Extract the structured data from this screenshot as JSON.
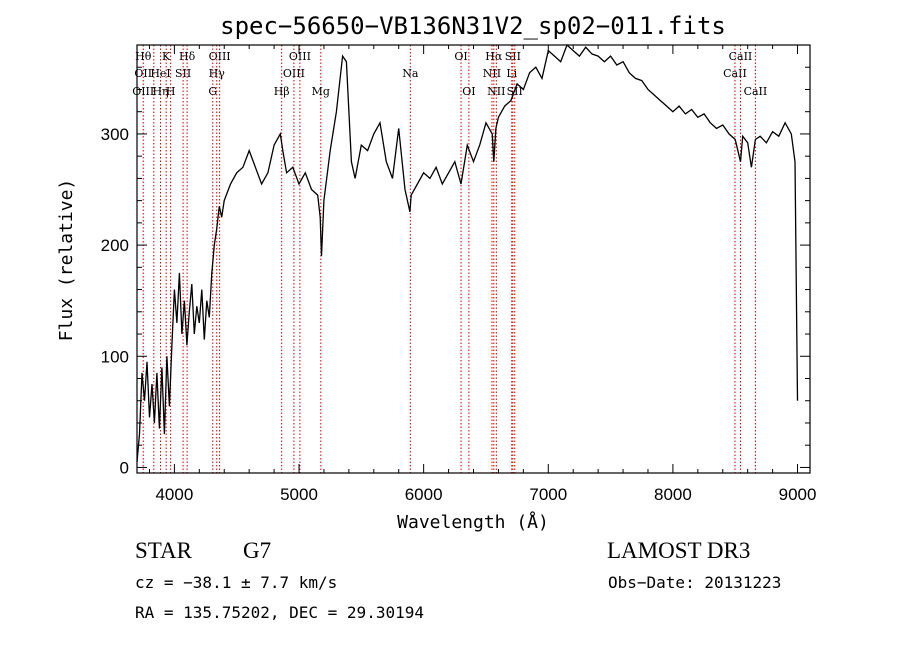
{
  "chart_data": {
    "type": "line",
    "title": "spec−56650−VB136N31V2_sp02−011.fits",
    "xlabel": "Wavelength (Å)",
    "ylabel": "Flux (relative)",
    "xlim": [
      3700,
      9100
    ],
    "ylim": [
      -5,
      380
    ],
    "xticks": [
      4000,
      5000,
      6000,
      7000,
      8000,
      9000
    ],
    "yticks": [
      0,
      100,
      200,
      300
    ],
    "series": [
      {
        "x": [
          3700,
          3720,
          3740,
          3760,
          3780,
          3800,
          3820,
          3840,
          3860,
          3880,
          3900,
          3920,
          3940,
          3960,
          3980,
          4000,
          4020,
          4040,
          4060,
          4080,
          4100,
          4120,
          4140,
          4160,
          4180,
          4200,
          4220,
          4240,
          4260,
          4280,
          4300,
          4320,
          4340,
          4360,
          4380,
          4400,
          4450,
          4500,
          4550,
          4600,
          4650,
          4700,
          4750,
          4800,
          4850,
          4870,
          4900,
          4950,
          5000,
          5050,
          5100,
          5150,
          5170,
          5180,
          5200,
          5250,
          5300,
          5350,
          5380,
          5400,
          5420,
          5450,
          5500,
          5550,
          5600,
          5650,
          5700,
          5750,
          5800,
          5850,
          5890,
          5900,
          5950,
          6000,
          6050,
          6100,
          6150,
          6200,
          6250,
          6300,
          6350,
          6400,
          6450,
          6500,
          6550,
          6563,
          6580,
          6600,
          6650,
          6700,
          6750,
          6800,
          6850,
          6900,
          6950,
          7000,
          7050,
          7100,
          7150,
          7200,
          7250,
          7300,
          7350,
          7400,
          7450,
          7500,
          7550,
          7600,
          7650,
          7700,
          7750,
          7800,
          7850,
          7900,
          7950,
          8000,
          8050,
          8100,
          8150,
          8200,
          8250,
          8300,
          8350,
          8400,
          8450,
          8500,
          8542,
          8560,
          8600,
          8630,
          8662,
          8700,
          8750,
          8800,
          8850,
          8900,
          8950,
          8980,
          9000
        ],
        "y": [
          5,
          30,
          85,
          60,
          95,
          45,
          75,
          40,
          85,
          35,
          90,
          30,
          100,
          55,
          110,
          160,
          130,
          175,
          120,
          150,
          110,
          140,
          165,
          120,
          145,
          130,
          160,
          115,
          150,
          135,
          175,
          200,
          215,
          235,
          225,
          240,
          255,
          265,
          270,
          285,
          270,
          255,
          265,
          290,
          300,
          285,
          265,
          270,
          255,
          265,
          250,
          245,
          225,
          190,
          240,
          285,
          320,
          370,
          365,
          320,
          275,
          260,
          290,
          285,
          300,
          310,
          275,
          260,
          305,
          250,
          230,
          245,
          255,
          265,
          260,
          270,
          255,
          265,
          275,
          255,
          290,
          275,
          290,
          310,
          300,
          275,
          305,
          315,
          325,
          330,
          345,
          340,
          355,
          360,
          350,
          375,
          370,
          365,
          380,
          375,
          370,
          378,
          372,
          370,
          365,
          370,
          362,
          365,
          355,
          350,
          348,
          340,
          335,
          330,
          325,
          320,
          325,
          318,
          322,
          315,
          318,
          310,
          305,
          308,
          300,
          295,
          275,
          298,
          292,
          270,
          295,
          298,
          292,
          302,
          298,
          310,
          300,
          275,
          60
        ]
      }
    ],
    "lines": [
      {
        "x": 3750,
        "top": "Hθ",
        "mid": "OII",
        "low": "OIII"
      },
      {
        "x": 3835,
        "top": "",
        "mid": "",
        "low": ""
      },
      {
        "x": 3889,
        "top": "",
        "mid": "HeI",
        "low": "Hη"
      },
      {
        "x": 3934,
        "top": "K",
        "mid": "",
        "low": ""
      },
      {
        "x": 3970,
        "top": "",
        "mid": "",
        "low": "H"
      },
      {
        "x": 4070,
        "top": "",
        "mid": "SII",
        "low": ""
      },
      {
        "x": 4102,
        "top": "Hδ",
        "mid": "",
        "low": ""
      },
      {
        "x": 4308,
        "top": "",
        "mid": "",
        "low": "G"
      },
      {
        "x": 4340,
        "top": "",
        "mid": "Hγ",
        "low": ""
      },
      {
        "x": 4363,
        "top": "OIII",
        "mid": "",
        "low": ""
      },
      {
        "x": 4861,
        "top": "",
        "mid": "",
        "low": "Hβ"
      },
      {
        "x": 4959,
        "top": "",
        "mid": "OIII",
        "low": ""
      },
      {
        "x": 5007,
        "top": "OIII",
        "mid": "",
        "low": ""
      },
      {
        "x": 5175,
        "top": "",
        "mid": "",
        "low": "Mg"
      },
      {
        "x": 5893,
        "top": "",
        "mid": "Na",
        "low": ""
      },
      {
        "x": 6300,
        "top": "OI",
        "mid": "",
        "low": ""
      },
      {
        "x": 6363,
        "top": "",
        "mid": "",
        "low": "OI"
      },
      {
        "x": 6548,
        "top": "",
        "mid": "NII",
        "low": ""
      },
      {
        "x": 6563,
        "top": "Hα",
        "mid": "",
        "low": ""
      },
      {
        "x": 6583,
        "top": "",
        "mid": "",
        "low": "NII"
      },
      {
        "x": 6707,
        "top": "",
        "mid": "Li",
        "low": ""
      },
      {
        "x": 6716,
        "top": "SII",
        "mid": "",
        "low": ""
      },
      {
        "x": 6731,
        "top": "",
        "mid": "",
        "low": "SII"
      },
      {
        "x": 8498,
        "top": "",
        "mid": "CaII",
        "low": ""
      },
      {
        "x": 8542,
        "top": "CaII",
        "mid": "",
        "low": ""
      },
      {
        "x": 8662,
        "top": "",
        "mid": "",
        "low": "CaII"
      }
    ],
    "line_color": "#cc0000",
    "spectrum_color": "#000000",
    "grid": false
  },
  "info": {
    "class": "STAR",
    "subclass": "G7",
    "survey": "LAMOST DR3",
    "cz": "cz = −38.1 ± 7.7 km/s",
    "obs_date": "Obs−Date: 20131223",
    "radec": "RA = 135.75202, DEC =  29.30194"
  }
}
